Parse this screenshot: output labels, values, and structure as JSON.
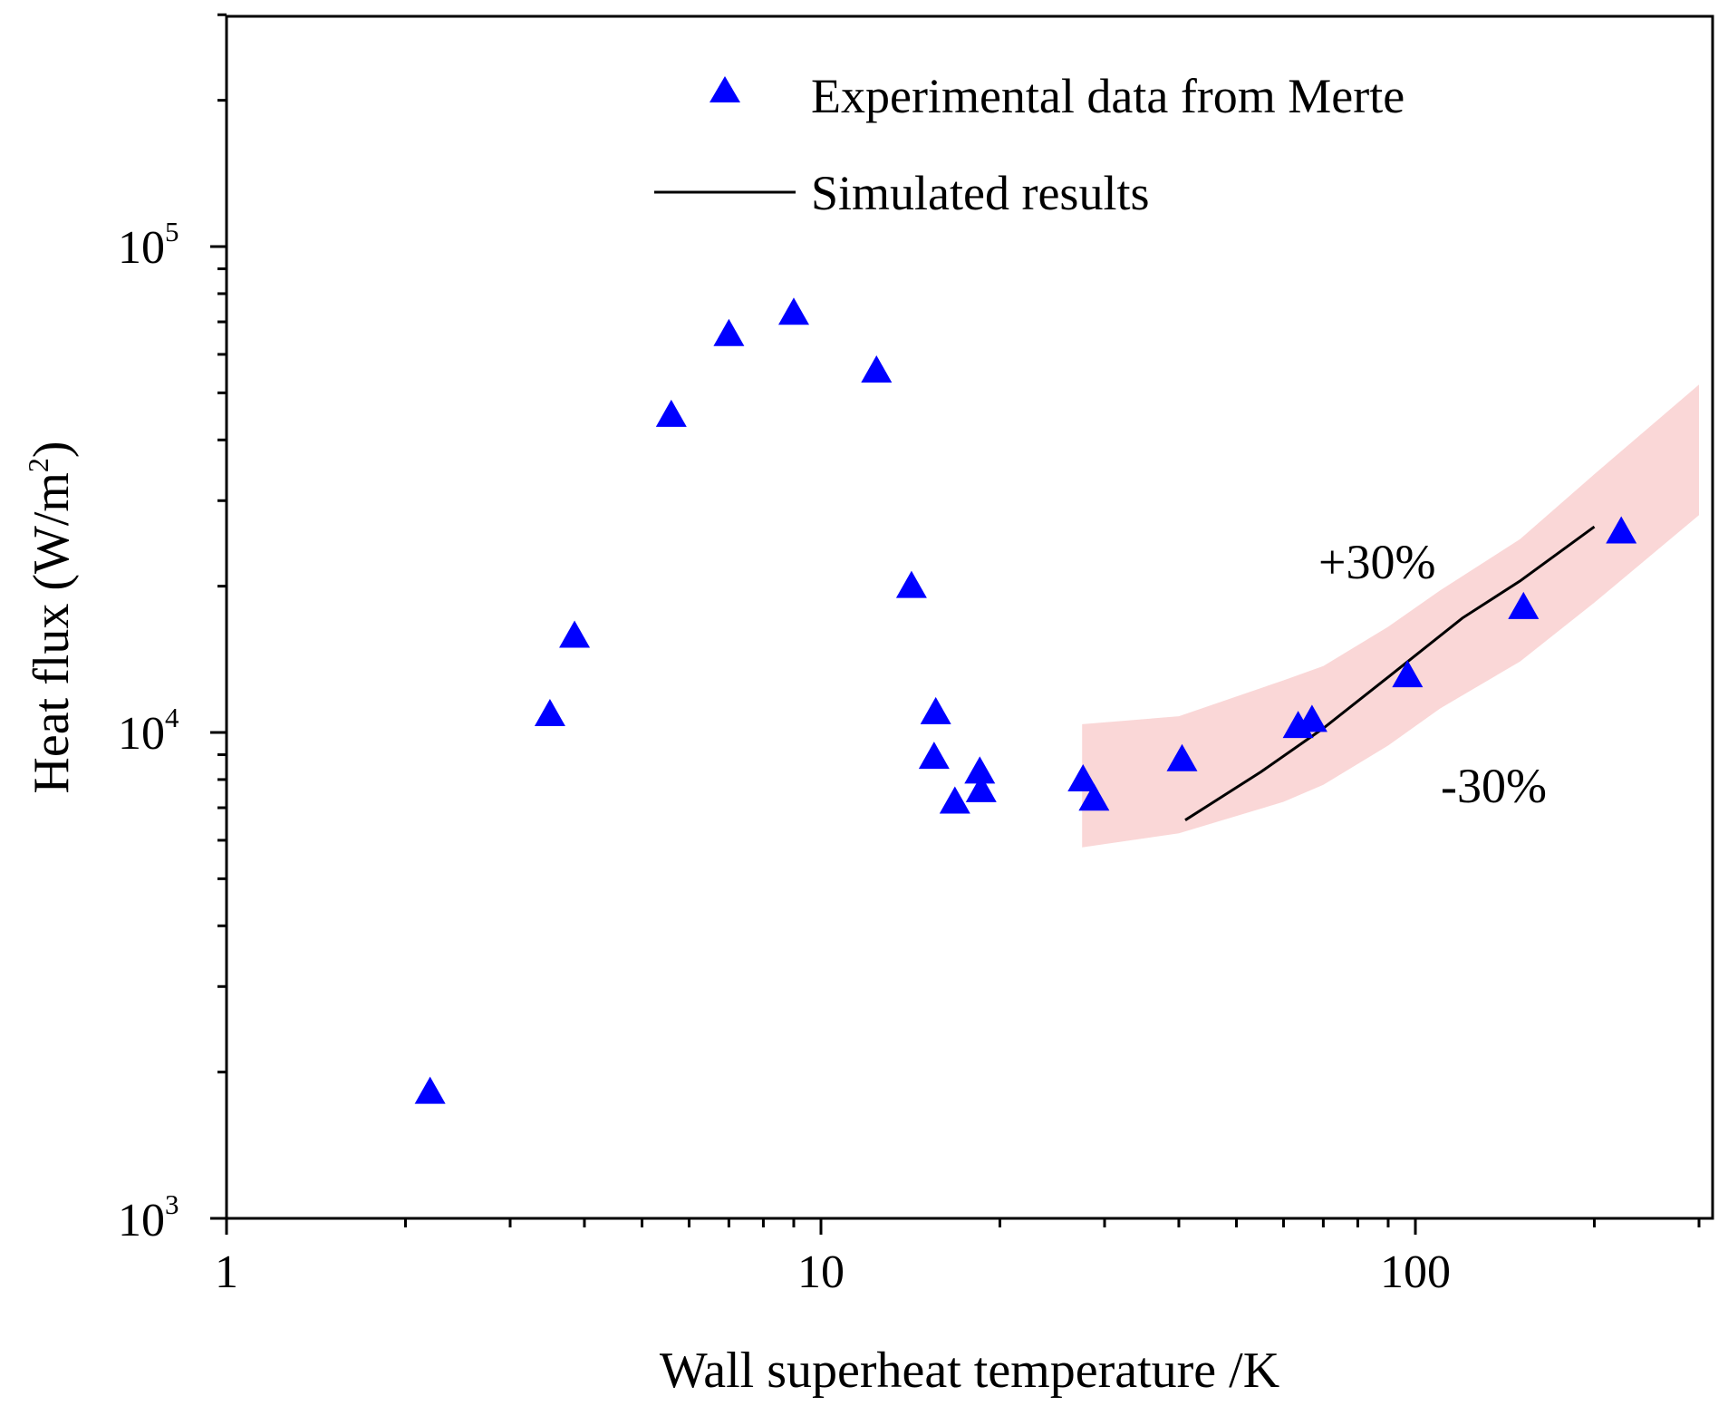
{
  "chart_data": {
    "type": "scatter",
    "title": "",
    "xlabel": "Wall superheat temperature /K",
    "ylabel": "Heat flux (W/m",
    "ylabel_sup": "2",
    "ylabel_close": ")",
    "xscale": "log",
    "yscale": "log",
    "xlim": [
      1,
      320
    ],
    "ylim": [
      1000,
      320000
    ],
    "x_ticks": [
      {
        "value": 1,
        "label": "1"
      },
      {
        "value": 10,
        "label": "10"
      },
      {
        "value": 100,
        "label": "100"
      }
    ],
    "y_ticks": [
      {
        "value": 1000,
        "base": "10",
        "exp": "3"
      },
      {
        "value": 10000,
        "base": "10",
        "exp": "4"
      },
      {
        "value": 100000,
        "base": "10",
        "exp": "5"
      }
    ],
    "grid": false,
    "legend_position": "top-center",
    "series": [
      {
        "name": "Experimental data from Merte",
        "kind": "marker",
        "marker": "triangle",
        "color": "#0000ff",
        "x": [
          2.2,
          3.5,
          3.85,
          5.6,
          7.0,
          9.0,
          12.4,
          14.2,
          15.6,
          15.5,
          16.8,
          18.5,
          18.6,
          27.6,
          28.8,
          40.5,
          63.5,
          67.0,
          97.0,
          152.0,
          222.0
        ],
        "y": [
          1820,
          10900,
          15800,
          45000,
          66000,
          73000,
          55500,
          20000,
          11000,
          8900,
          7200,
          8300,
          7600,
          8000,
          7300,
          8800,
          10300,
          10600,
          13100,
          18100,
          25900
        ]
      },
      {
        "name": "Simulated results",
        "kind": "line",
        "color": "#000000",
        "x": [
          41,
          55,
          70,
          90,
          100,
          120,
          150,
          200
        ],
        "y": [
          6600,
          8300,
          10200,
          13000,
          14400,
          17200,
          20500,
          26500
        ]
      }
    ],
    "band": {
      "color": "#fad7d7",
      "x": [
        27.5,
        40,
        60,
        70,
        90,
        110,
        150,
        200,
        300
      ],
      "upper": [
        10400,
        10800,
        12800,
        13700,
        16500,
        19600,
        25000,
        34000,
        52000
      ],
      "lower": [
        5800,
        6200,
        7200,
        7800,
        9400,
        11200,
        14000,
        18500,
        28000
      ]
    },
    "annotations": [
      "+30%",
      "-30%"
    ]
  }
}
